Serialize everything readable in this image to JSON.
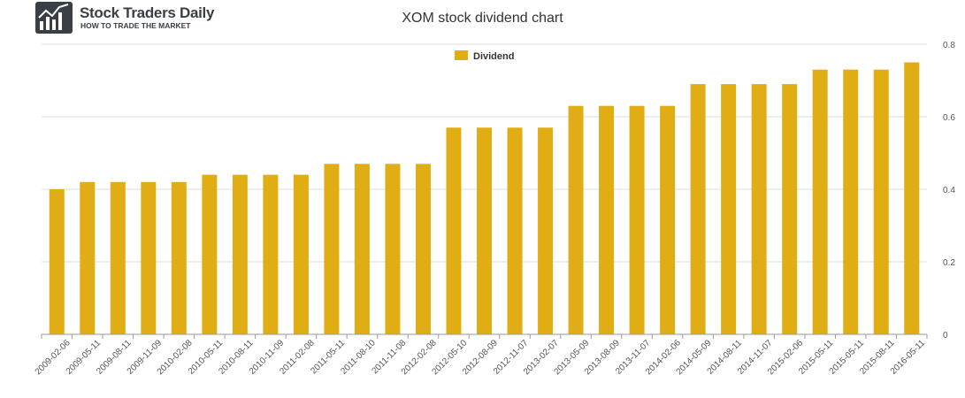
{
  "brand": {
    "name": "Stock Traders Daily",
    "tagline": "HOW TO TRADE THE MARKET"
  },
  "colors": {
    "bar": "#E0AE14",
    "grid": "#dddddd",
    "text": "#333333"
  },
  "chart_data": {
    "type": "bar",
    "title": "XOM stock dividend chart",
    "xlabel": "",
    "ylabel": "",
    "ylim": [
      0,
      0.8
    ],
    "yticks": [
      0,
      0.2,
      0.4,
      0.6,
      0.8
    ],
    "grid": true,
    "legend_position": "top-center",
    "categories": [
      "2009-02-06",
      "2009-05-11",
      "2009-08-11",
      "2009-11-09",
      "2010-02-08",
      "2010-05-11",
      "2010-08-11",
      "2010-11-09",
      "2011-02-08",
      "2011-05-11",
      "2011-08-10",
      "2011-11-08",
      "2012-02-08",
      "2012-05-10",
      "2012-08-09",
      "2012-11-07",
      "2013-02-07",
      "2013-05-09",
      "2013-08-09",
      "2013-11-07",
      "2014-02-06",
      "2014-05-09",
      "2014-08-11",
      "2014-11-07",
      "2015-02-06",
      "2015-05-11",
      "2015-05-11",
      "2015-08-11",
      "2016-05-11"
    ],
    "series": [
      {
        "name": "Dividend",
        "values": [
          0.4,
          0.42,
          0.42,
          0.42,
          0.42,
          0.44,
          0.44,
          0.44,
          0.44,
          0.47,
          0.47,
          0.47,
          0.47,
          0.57,
          0.57,
          0.57,
          0.57,
          0.63,
          0.63,
          0.63,
          0.63,
          0.69,
          0.69,
          0.69,
          0.69,
          0.73,
          0.73,
          0.73,
          0.75
        ]
      }
    ]
  }
}
